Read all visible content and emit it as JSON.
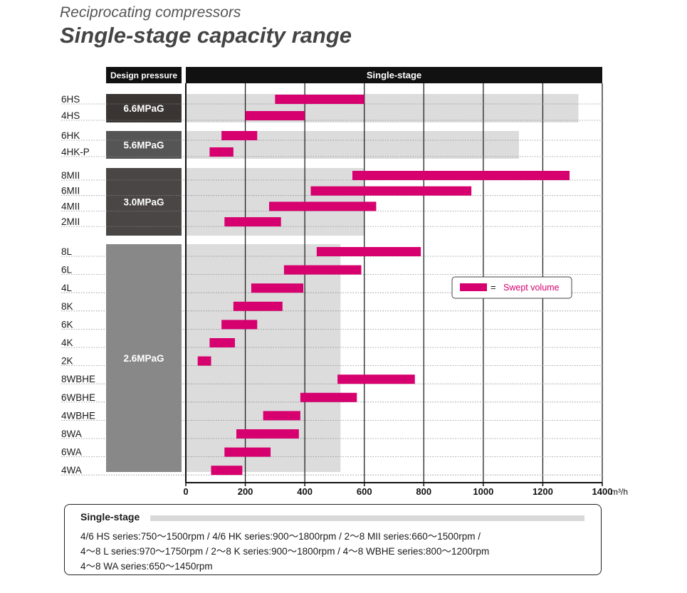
{
  "header": {
    "subtitle": "Reciprocating compressors",
    "title": "Single-stage capacity range"
  },
  "chart_data": {
    "type": "bar",
    "orientation": "horizontal-range",
    "column_headers": {
      "left": "Design pressure",
      "main": "Single-stage"
    },
    "x_unit": "m³/h",
    "xlim": [
      0,
      1400
    ],
    "x_ticks": [
      0,
      200,
      400,
      600,
      800,
      1000,
      1200,
      1400
    ],
    "grid": true,
    "legend": {
      "label": "Swept volume",
      "symbol": "=",
      "placement": "right"
    },
    "bar_color": "#d6006e",
    "groups": [
      {
        "pressure": "6.6MPaG",
        "range_max": 1320,
        "color": "#3a3533",
        "rows": [
          {
            "model": "6HS",
            "min": 300,
            "max": 600
          },
          {
            "model": "4HS",
            "min": 200,
            "max": 400
          }
        ]
      },
      {
        "pressure": "5.6MPaG",
        "range_max": 1120,
        "color": "#555555",
        "rows": [
          {
            "model": "6HK",
            "min": 120,
            "max": 240
          },
          {
            "model": "4HK-P",
            "min": 80,
            "max": 160
          }
        ]
      },
      {
        "pressure": "3.0MPaG",
        "range_max": 600,
        "color": "#4a4646",
        "rows": [
          {
            "model": "8MII",
            "min": 560,
            "max": 1290
          },
          {
            "model": "6MII",
            "min": 420,
            "max": 960
          },
          {
            "model": "4MII",
            "min": 280,
            "max": 640
          },
          {
            "model": "2MII",
            "min": 130,
            "max": 320
          }
        ]
      },
      {
        "pressure": "2.6MPaG",
        "range_max": 520,
        "color": "#888888",
        "rows": [
          {
            "model": "8L",
            "min": 440,
            "max": 790
          },
          {
            "model": "6L",
            "min": 330,
            "max": 590
          },
          {
            "model": "4L",
            "min": 220,
            "max": 395
          },
          {
            "model": "8K",
            "min": 160,
            "max": 325
          },
          {
            "model": "6K",
            "min": 120,
            "max": 240
          },
          {
            "model": "4K",
            "min": 80,
            "max": 165
          },
          {
            "model": "2K",
            "min": 40,
            "max": 85
          },
          {
            "model": "8WBHE",
            "min": 510,
            "max": 770
          },
          {
            "model": "6WBHE",
            "min": 385,
            "max": 575
          },
          {
            "model": "4WBHE",
            "min": 260,
            "max": 385
          },
          {
            "model": "8WA",
            "min": 170,
            "max": 380
          },
          {
            "model": "6WA",
            "min": 130,
            "max": 285
          },
          {
            "model": "4WA",
            "min": 85,
            "max": 190
          }
        ]
      }
    ]
  },
  "notes": {
    "title": "Single-stage",
    "lines": [
      "4/6 HS series:750～1500rpm / 4/6 HK series:900～1800rpm / 2～8 MII series:660～1500rpm /",
      "4～8 L series:970～1750rpm / 2～8 K series:900～1800rpm / 4～8 WBHE series:800～1200rpm",
      "4～8 WA series:650～1450rpm"
    ]
  }
}
